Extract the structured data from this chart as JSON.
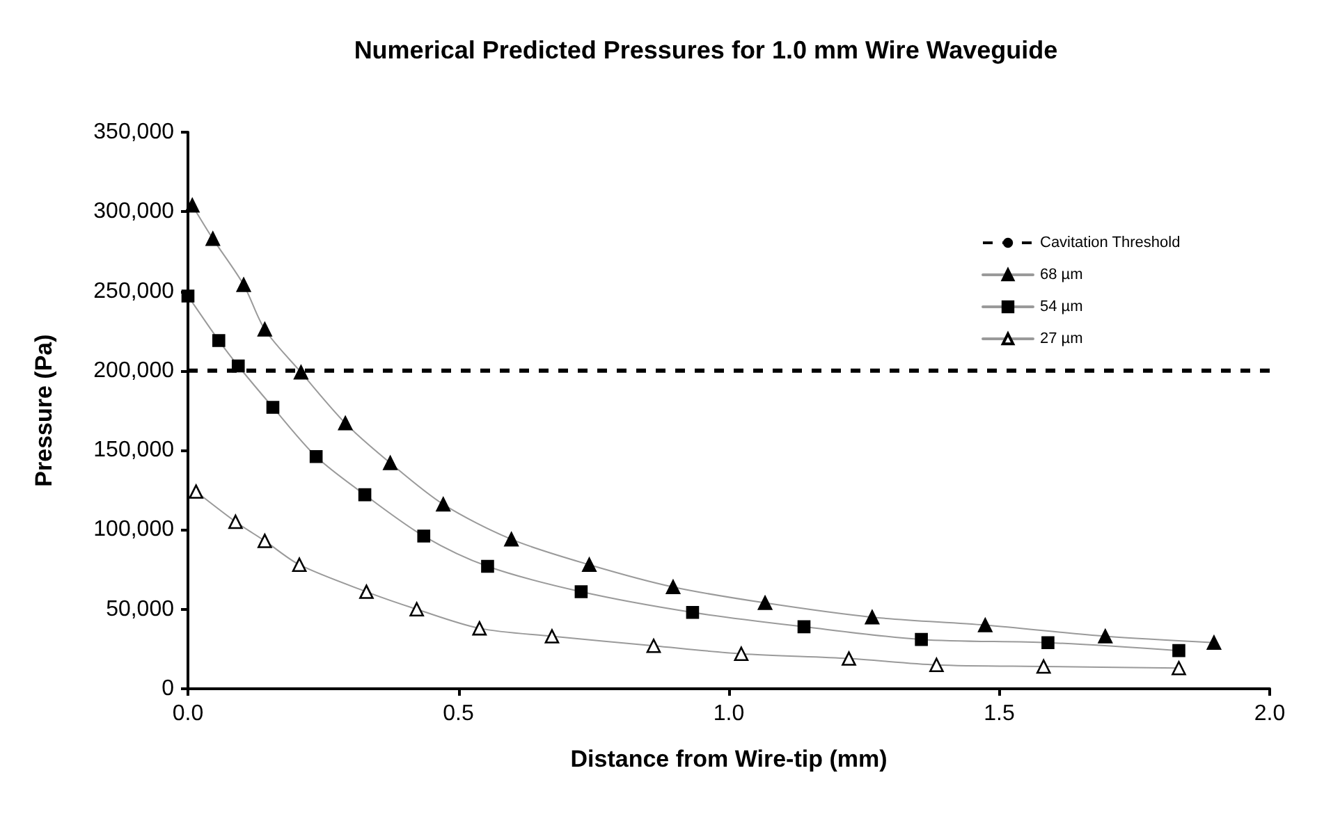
{
  "chart_data": {
    "type": "line",
    "title": "Numerical Predicted Pressures for 1.0 mm Wire Waveguide",
    "xlabel": "Distance from Wire-tip (mm)",
    "ylabel": "Pressure (Pa)",
    "xlim": [
      0,
      2
    ],
    "xticks": [
      {
        "value": 0,
        "label": "0.0"
      },
      {
        "value": 0.5,
        "label": "0.5"
      },
      {
        "value": 1,
        "label": "1.0"
      },
      {
        "value": 1.5,
        "label": "1.5"
      },
      {
        "value": 2,
        "label": "2.0"
      }
    ],
    "ylim": [
      0,
      350000
    ],
    "yticks": [
      0,
      {
        "value": 50000,
        "label": "50,000"
      },
      {
        "value": 100000,
        "label": "100,000"
      },
      {
        "value": 150000,
        "label": "150,000"
      },
      {
        "value": 200000,
        "label": "200,000"
      },
      {
        "value": 250000,
        "label": "250,000"
      },
      {
        "value": 300000,
        "label": "300,000"
      },
      {
        "value": 350000,
        "label": "350,000"
      }
    ],
    "series": [
      {
        "name": "68 µm",
        "color": "#000000",
        "marker": "triangle",
        "x": [
          0.008,
          0.046,
          0.103,
          0.142,
          0.209,
          0.291,
          0.374,
          0.472,
          0.598,
          0.742,
          0.897,
          1.067,
          1.265,
          1.474,
          1.696,
          1.897
        ],
        "values": [
          304000,
          283000,
          254000,
          226000,
          199000,
          167000,
          142000,
          116000,
          94000,
          78000,
          64000,
          54000,
          45000,
          40000,
          33000,
          29000
        ]
      },
      {
        "name": "54 µm",
        "color": "#000000",
        "marker": "square",
        "x": [
          0,
          0.057,
          0.093,
          0.157,
          0.237,
          0.327,
          0.436,
          0.554,
          0.727,
          0.933,
          1.139,
          1.356,
          1.59,
          1.832
        ],
        "values": [
          247000,
          219000,
          203000,
          177000,
          146000,
          122000,
          96000,
          77000,
          61000,
          48000,
          39000,
          31000,
          29000,
          24000
        ]
      },
      {
        "name": "27 µm",
        "color": "#ffffff",
        "marker": "triangle",
        "x": [
          0.015,
          0.088,
          0.142,
          0.206,
          0.33,
          0.423,
          0.539,
          0.673,
          0.861,
          1.023,
          1.222,
          1.384,
          1.582,
          1.832
        ],
        "values": [
          124000,
          105000,
          93000,
          78000,
          61000,
          50000,
          38000,
          33000,
          27000,
          22000,
          19000,
          15000,
          14000,
          13000
        ]
      }
    ],
    "ref_lines": [
      {
        "axis": "y",
        "value": 200000,
        "label": "Cavitation Threshold",
        "color": "#000000",
        "line_style": "dashed"
      }
    ],
    "legend": "top right",
    "grid": false
  }
}
